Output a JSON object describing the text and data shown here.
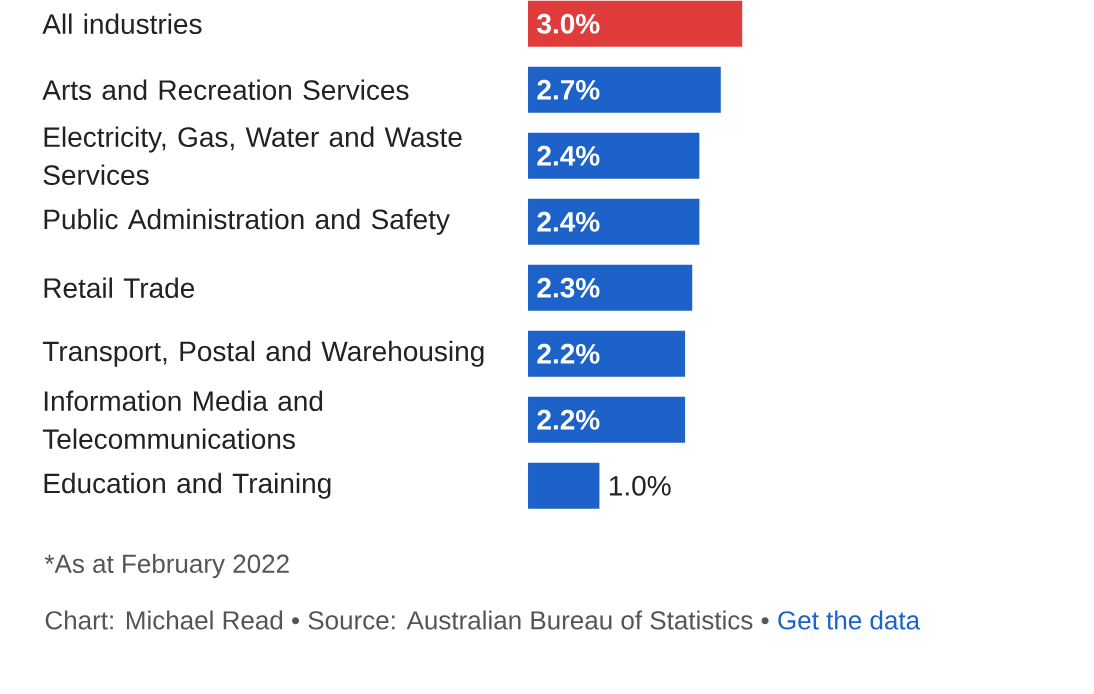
{
  "chart_data": {
    "type": "bar",
    "orientation": "horizontal",
    "categories": [
      "All industries",
      "Arts and Recreation Services",
      "Electricity, Gas, Water and Waste Services",
      "Public Administration and Safety",
      "Retail Trade",
      "Transport, Postal and Warehousing",
      "Information Media and Telecommunications",
      "Education and Training"
    ],
    "values": [
      3.0,
      2.7,
      2.4,
      2.4,
      2.3,
      2.2,
      2.2,
      1.0
    ],
    "colors": [
      "#e03c3c",
      "#1c62c8",
      "#1c62c8",
      "#1c62c8",
      "#1c62c8",
      "#1c62c8",
      "#1c62c8",
      "#1c62c8"
    ],
    "value_labels": [
      "3.0%",
      "2.7%",
      "2.4%",
      "2.4%",
      "2.3%",
      "2.2%",
      "2.2%",
      "1.0%"
    ],
    "annotations": [
      "*As at February 2022",
      "Chart: Michael Read • Source: Australian Bureau of Statistics •",
      "Get the data"
    ]
  }
}
